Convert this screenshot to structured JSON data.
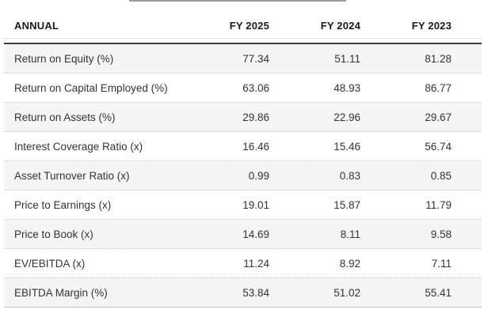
{
  "top_bar": {
    "note": "partial underline of element cropped above table"
  },
  "chart_data": {
    "type": "table",
    "corner_label": "ANNUAL",
    "columns": [
      "FY 2025",
      "FY 2024",
      "FY 2023"
    ],
    "rows": [
      {
        "label": "Return on Equity (%)",
        "values": [
          "77.34",
          "51.11",
          "81.28"
        ]
      },
      {
        "label": "Return on Capital Employed (%)",
        "values": [
          "63.06",
          "48.93",
          "86.77"
        ]
      },
      {
        "label": "Return on Assets (%)",
        "values": [
          "29.86",
          "22.96",
          "29.67"
        ]
      },
      {
        "label": "Interest Coverage Ratio (x)",
        "values": [
          "16.46",
          "15.46",
          "56.74"
        ]
      },
      {
        "label": "Asset Turnover Ratio (x)",
        "values": [
          "0.99",
          "0.83",
          "0.85"
        ]
      },
      {
        "label": "Price to Earnings (x)",
        "values": [
          "19.01",
          "15.87",
          "11.79"
        ]
      },
      {
        "label": "Price to Book (x)",
        "values": [
          "14.69",
          "8.11",
          "9.58"
        ]
      },
      {
        "label": "EV/EBITDA (x)",
        "values": [
          "11.24",
          "8.92",
          "7.11"
        ]
      },
      {
        "label": "EBITDA Margin (%)",
        "values": [
          "53.84",
          "51.02",
          "55.41"
        ]
      }
    ]
  },
  "colors": {
    "header_rule": "#3e3e3e",
    "alt_row_bg": "#f5f5f5",
    "row_separator": "#c7c7c7",
    "header_underline": "#e1e1e1",
    "top_partial_line": "#9b9b9b",
    "text": "#333333"
  }
}
